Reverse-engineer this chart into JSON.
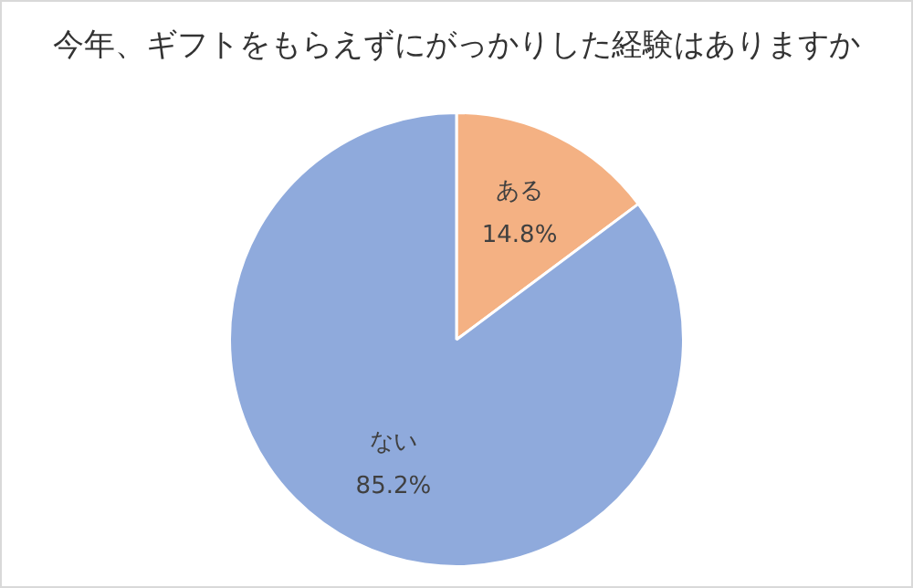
{
  "chart_data": {
    "type": "pie",
    "title": "今年、ギフトをもらえずにがっかりした経験はありますか",
    "categories": [
      "ある",
      "ない"
    ],
    "values": [
      14.8,
      85.2
    ],
    "value_labels": [
      "14.8%",
      "85.2%"
    ],
    "colors": [
      "#f4b183",
      "#8faadc"
    ],
    "legend": false
  }
}
